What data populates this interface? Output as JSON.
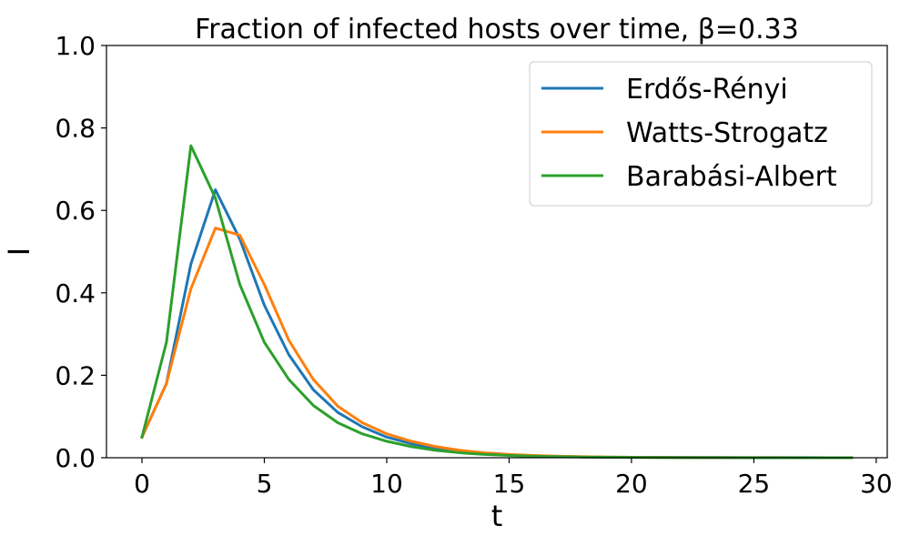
{
  "chart_data": {
    "type": "line",
    "title": "Fraction of infected hosts over time, β=0.33",
    "xlabel": "t",
    "ylabel": "I",
    "xlim": [
      -1.45,
      30.45
    ],
    "ylim": [
      0,
      1.0
    ],
    "xticks": [
      0,
      5,
      10,
      15,
      20,
      25,
      30
    ],
    "yticks": [
      0.0,
      0.2,
      0.4,
      0.6,
      0.8,
      1.0
    ],
    "xtick_labels": [
      "0",
      "5",
      "10",
      "15",
      "20",
      "25",
      "30"
    ],
    "ytick_labels": [
      "0.0",
      "0.2",
      "0.4",
      "0.6",
      "0.8",
      "1.0"
    ],
    "grid": false,
    "legend_position": "top-right",
    "x": [
      0,
      1,
      2,
      3,
      4,
      5,
      6,
      7,
      8,
      9,
      10,
      11,
      12,
      13,
      14,
      15,
      16,
      17,
      18,
      19,
      20,
      21,
      22,
      23,
      24,
      25,
      26,
      27,
      28,
      29
    ],
    "series": [
      {
        "name": "Erdős-Rényi",
        "color": "#1f77b4",
        "values": [
          0.05,
          0.18,
          0.47,
          0.65,
          0.53,
          0.37,
          0.25,
          0.165,
          0.11,
          0.075,
          0.05,
          0.034,
          0.023,
          0.016,
          0.011,
          0.007,
          0.005,
          0.003,
          0.002,
          0.0015,
          0.001,
          0.001,
          0.0007,
          0.0005,
          0.0004,
          0.0003,
          0.0002,
          0.0002,
          0.0001,
          0.0001
        ]
      },
      {
        "name": "Watts-Strogatz",
        "color": "#ff7f0e",
        "values": [
          0.05,
          0.18,
          0.41,
          0.557,
          0.54,
          0.42,
          0.285,
          0.19,
          0.125,
          0.085,
          0.058,
          0.04,
          0.027,
          0.018,
          0.012,
          0.008,
          0.0055,
          0.0037,
          0.0025,
          0.0017,
          0.0012,
          0.0008,
          0.0006,
          0.0004,
          0.0003,
          0.0002,
          0.0002,
          0.0001,
          0.0001,
          0.0001
        ]
      },
      {
        "name": "Barabási-Albert",
        "color": "#2ca02c",
        "values": [
          0.05,
          0.28,
          0.757,
          0.63,
          0.42,
          0.28,
          0.19,
          0.127,
          0.085,
          0.058,
          0.04,
          0.027,
          0.018,
          0.012,
          0.008,
          0.0055,
          0.0037,
          0.0025,
          0.0017,
          0.0011,
          0.0008,
          0.0005,
          0.0004,
          0.0003,
          0.0002,
          0.0001,
          0.0001,
          0.0001,
          0.0001,
          0.0001
        ]
      }
    ]
  }
}
